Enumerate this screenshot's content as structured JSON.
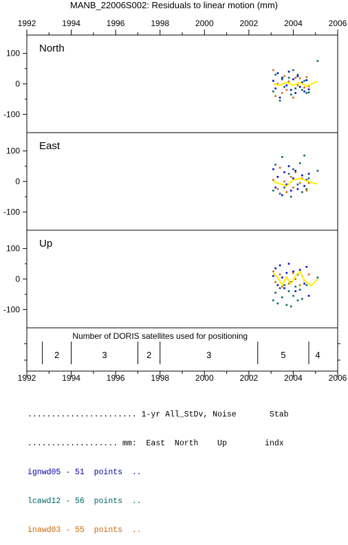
{
  "chart_data": {
    "type": "scatter",
    "title": "MANB_22006S002: Residuals to linear motion (mm)",
    "xlim": [
      1992,
      2006
    ],
    "x_ticks": [
      "1992",
      "1994",
      "1996",
      "1998",
      "2000",
      "2002",
      "2004",
      "2006"
    ],
    "panels": [
      {
        "name": "North",
        "ylim": [
          -160,
          160
        ],
        "y_ticks": [
          "100",
          "0",
          "-100"
        ],
        "series": [
          {
            "name": "ignwd05",
            "color": "#0000cc",
            "points": [
              [
                2003.1,
                10
              ],
              [
                2003.2,
                -15
              ],
              [
                2003.3,
                35
              ],
              [
                2003.4,
                -45
              ],
              [
                2003.5,
                20
              ],
              [
                2003.7,
                -5
              ],
              [
                2003.8,
                40
              ],
              [
                2003.9,
                -20
              ],
              [
                2004.0,
                15
              ],
              [
                2004.1,
                -30
              ],
              [
                2004.2,
                25
              ],
              [
                2004.3,
                -10
              ],
              [
                2004.4,
                5
              ],
              [
                2004.5,
                -25
              ],
              [
                2004.6,
                12
              ],
              [
                2004.7,
                -18
              ]
            ]
          },
          {
            "name": "lcawd12",
            "color": "#006666",
            "points": [
              [
                2003.1,
                -25
              ],
              [
                2003.2,
                30
              ],
              [
                2003.4,
                -55
              ],
              [
                2003.5,
                15
              ],
              [
                2003.6,
                -10
              ],
              [
                2003.8,
                20
              ],
              [
                2003.9,
                -35
              ],
              [
                2004.0,
                45
              ],
              [
                2004.1,
                -15
              ],
              [
                2004.2,
                30
              ],
              [
                2004.4,
                -20
              ],
              [
                2004.5,
                10
              ],
              [
                2004.6,
                -30
              ],
              [
                2004.7,
                -28
              ],
              [
                2005.1,
                75
              ]
            ]
          },
          {
            "name": "inawd03",
            "color": "#cc6600",
            "points": [
              [
                2003.1,
                45
              ],
              [
                2003.2,
                -40
              ],
              [
                2003.3,
                0
              ],
              [
                2003.5,
                -30
              ],
              [
                2003.6,
                25
              ],
              [
                2003.7,
                -20
              ],
              [
                2003.8,
                8
              ],
              [
                2004.0,
                -45
              ],
              [
                2004.1,
                20
              ],
              [
                2004.2,
                -5
              ],
              [
                2004.3,
                18
              ],
              [
                2004.5,
                -12
              ],
              [
                2004.6,
                22
              ],
              [
                2004.7,
                -8
              ]
            ]
          }
        ],
        "smooth": [
          [
            2003.1,
            0
          ],
          [
            2003.4,
            -5
          ],
          [
            2003.7,
            5
          ],
          [
            2004.0,
            -5
          ],
          [
            2004.3,
            5
          ],
          [
            2004.6,
            -8
          ],
          [
            2004.9,
            2
          ],
          [
            2005.1,
            8
          ]
        ]
      },
      {
        "name": "East",
        "ylim": [
          -160,
          160
        ],
        "y_ticks": [
          "100",
          "0",
          "-100"
        ],
        "series": [
          {
            "name": "ignwd05",
            "color": "#0000cc",
            "points": [
              [
                2003.1,
                40
              ],
              [
                2003.2,
                -20
              ],
              [
                2003.3,
                15
              ],
              [
                2003.5,
                -45
              ],
              [
                2003.6,
                30
              ],
              [
                2003.7,
                -10
              ],
              [
                2003.8,
                50
              ],
              [
                2003.9,
                -30
              ],
              [
                2004.0,
                10
              ],
              [
                2004.1,
                35
              ],
              [
                2004.2,
                -25
              ],
              [
                2004.4,
                20
              ],
              [
                2004.5,
                -15
              ],
              [
                2004.6,
                5
              ],
              [
                2004.7,
                25
              ]
            ]
          },
          {
            "name": "lcawd12",
            "color": "#006666",
            "points": [
              [
                2003.1,
                -30
              ],
              [
                2003.2,
                55
              ],
              [
                2003.4,
                -40
              ],
              [
                2003.5,
                80
              ],
              [
                2003.6,
                -20
              ],
              [
                2003.8,
                25
              ],
              [
                2003.9,
                -50
              ],
              [
                2004.0,
                40
              ],
              [
                2004.2,
                -10
              ],
              [
                2004.3,
                60
              ],
              [
                2004.4,
                -35
              ],
              [
                2004.5,
                85
              ],
              [
                2004.6,
                -25
              ],
              [
                2004.7,
                10
              ],
              [
                2005.1,
                35
              ]
            ]
          },
          {
            "name": "inawd03",
            "color": "#cc6600",
            "points": [
              [
                2003.1,
                5
              ],
              [
                2003.3,
                -25
              ],
              [
                2003.4,
                45
              ],
              [
                2003.6,
                0
              ],
              [
                2003.7,
                -35
              ],
              [
                2003.9,
                15
              ],
              [
                2004.0,
                -20
              ],
              [
                2004.1,
                30
              ],
              [
                2004.3,
                -5
              ],
              [
                2004.4,
                10
              ],
              [
                2004.6,
                -30
              ],
              [
                2004.7,
                -5
              ]
            ]
          }
        ],
        "smooth": [
          [
            2003.1,
            0
          ],
          [
            2003.4,
            -8
          ],
          [
            2003.7,
            -15
          ],
          [
            2004.0,
            5
          ],
          [
            2004.3,
            10
          ],
          [
            2004.6,
            2
          ],
          [
            2004.9,
            -5
          ],
          [
            2005.1,
            -8
          ]
        ]
      },
      {
        "name": "Up",
        "ylim": [
          -160,
          160
        ],
        "y_ticks": [
          "100",
          "0",
          "-100"
        ],
        "series": [
          {
            "name": "ignwd05",
            "color": "#0000cc",
            "points": [
              [
                2003.1,
                10
              ],
              [
                2003.2,
                35
              ],
              [
                2003.3,
                -20
              ],
              [
                2003.4,
                45
              ],
              [
                2003.5,
                5
              ],
              [
                2003.6,
                -30
              ],
              [
                2003.7,
                20
              ],
              [
                2003.8,
                50
              ],
              [
                2003.9,
                -10
              ],
              [
                2004.0,
                25
              ],
              [
                2004.1,
                -40
              ],
              [
                2004.2,
                15
              ],
              [
                2004.3,
                30
              ],
              [
                2004.5,
                -15
              ],
              [
                2004.6,
                40
              ],
              [
                2004.7,
                -55
              ]
            ]
          },
          {
            "name": "lcawd12",
            "color": "#006666",
            "points": [
              [
                2003.1,
                -70
              ],
              [
                2003.2,
                -45
              ],
              [
                2003.3,
                -80
              ],
              [
                2003.4,
                -30
              ],
              [
                2003.5,
                -60
              ],
              [
                2003.6,
                -20
              ],
              [
                2003.7,
                -85
              ],
              [
                2003.8,
                -40
              ],
              [
                2003.9,
                -90
              ],
              [
                2004.0,
                -55
              ],
              [
                2004.1,
                -25
              ],
              [
                2004.2,
                -70
              ],
              [
                2004.3,
                -35
              ],
              [
                2004.4,
                -65
              ],
              [
                2004.6,
                -20
              ],
              [
                2005.1,
                5
              ]
            ]
          },
          {
            "name": "inawd03",
            "color": "#cc6600",
            "points": [
              [
                2003.1,
                25
              ],
              [
                2003.2,
                -10
              ],
              [
                2003.4,
                15
              ],
              [
                2003.5,
                -25
              ],
              [
                2003.7,
                5
              ],
              [
                2003.8,
                -15
              ],
              [
                2004.0,
                20
              ],
              [
                2004.1,
                0
              ],
              [
                2004.3,
                -20
              ],
              [
                2004.4,
                10
              ],
              [
                2004.5,
                -5
              ],
              [
                2004.7,
                15
              ]
            ]
          }
        ],
        "smooth": [
          [
            2003.1,
            20
          ],
          [
            2003.3,
            5
          ],
          [
            2003.5,
            -20
          ],
          [
            2003.7,
            5
          ],
          [
            2003.9,
            -15
          ],
          [
            2004.1,
            10
          ],
          [
            2004.3,
            25
          ],
          [
            2004.5,
            -5
          ],
          [
            2004.8,
            -22
          ],
          [
            2005.1,
            0
          ]
        ]
      }
    ],
    "satellites": {
      "label": "Number of DORIS satellites used for positioning",
      "dividers": [
        1992.7,
        1994.0,
        1997.0,
        1998.0,
        2002.4,
        2004.7
      ],
      "segments": [
        {
          "x": 1993.35,
          "count": "2"
        },
        {
          "x": 1995.5,
          "count": "3"
        },
        {
          "x": 1997.5,
          "count": "2"
        },
        {
          "x": 2000.2,
          "count": "3"
        },
        {
          "x": 2003.55,
          "count": "5"
        },
        {
          "x": 2005.1,
          "count": "4"
        }
      ]
    },
    "colors": {
      "axis": "#000000",
      "smooth": "#ffee00"
    }
  },
  "stats": {
    "header_line1": "....................... 1-yr All_StDv, Noise       Stab",
    "header_line2": "................... mm:  East  North    Up        indx",
    "rows": [
      {
        "text": "ignwd05 - 51  points  ..",
        "color": "#0000aa"
      },
      {
        "text": "lcawd12 - 56  points  ..",
        "color": "#006666"
      },
      {
        "text": "inawd03 - 55  points  ..",
        "color": "#cc6600"
      }
    ]
  }
}
